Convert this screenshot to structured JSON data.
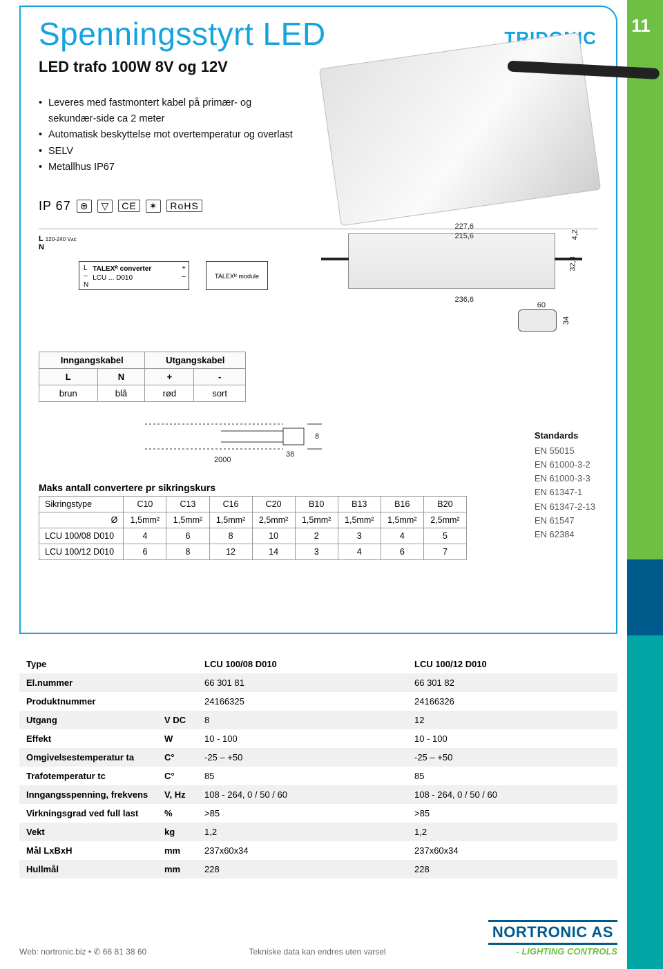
{
  "page_number": "11",
  "title": "Spenningsstyrt LED",
  "subtitle": "LED trafo 100W 8V og 12V",
  "brand": "TRIDONIC",
  "bullets": [
    "Leveres med fastmontert kabel på primær- og sekundær-side ca 2 meter",
    "Automatisk beskyttelse mot overtemperatur og overlast",
    "SELV",
    "Metallhus IP67"
  ],
  "ip_rating": "IP 67",
  "certs": [
    "⊜",
    "▽",
    "CE",
    "✶",
    "RoHS"
  ],
  "wiring": {
    "mains_label": "120-240 Vᴀᴄ",
    "L": "L",
    "N": "N",
    "converter_L": "L",
    "converter_N": "N",
    "tilde": "~",
    "converter_line1": "TALEXᴿ converter",
    "converter_line2": "LCU ... D010",
    "plus": "+",
    "minus": "–",
    "led_module": "TALEXᴿ module"
  },
  "dimensions": {
    "w_outer": "227,6",
    "w_inner": "215,6",
    "total": "236,6",
    "side_h": "4,2",
    "side_h2": "32,8",
    "end_w": "60",
    "end_h": "34",
    "cable_len": "2000",
    "cable_tag1": "38",
    "cable_tag2": "8"
  },
  "cable_table": {
    "head_in": "Inngangskabel",
    "head_out": "Utgangskabel",
    "cols": [
      "L",
      "N",
      "+",
      "-"
    ],
    "row": [
      "brun",
      "blå",
      "rød",
      "sort"
    ]
  },
  "fuse_heading": "Maks antall convertere pr sikringskurs",
  "fuse_table": {
    "row_labels": [
      "Sikringstype",
      "Ø",
      "LCU 100/08 D010",
      "LCU 100/12 D010"
    ],
    "types": [
      "C10",
      "C13",
      "C16",
      "C20",
      "B10",
      "B13",
      "B16",
      "B20"
    ],
    "diam": [
      "1,5mm²",
      "1,5mm²",
      "1,5mm²",
      "2,5mm²",
      "1,5mm²",
      "1,5mm²",
      "1,5mm²",
      "2,5mm²"
    ],
    "r1": [
      "4",
      "6",
      "8",
      "10",
      "2",
      "3",
      "4",
      "5"
    ],
    "r2": [
      "6",
      "8",
      "12",
      "14",
      "3",
      "4",
      "6",
      "7"
    ]
  },
  "standards": {
    "heading": "Standards",
    "items": [
      "EN 55015",
      "EN 61000-3-2",
      "EN 61000-3-3",
      "EN 61347-1",
      "EN 61347-2-13",
      "EN 61547",
      "EN 62384"
    ]
  },
  "spec": {
    "type_label": "Type",
    "cols": [
      "LCU 100/08 D010",
      "LCU 100/12 D010"
    ],
    "rows": [
      {
        "label": "El.nummer",
        "unit": "",
        "v": [
          "66 301 81",
          "66 301 82"
        ]
      },
      {
        "label": "Produktnummer",
        "unit": "",
        "v": [
          "24166325",
          "24166326"
        ]
      },
      {
        "label": "Utgang",
        "unit": "V DC",
        "v": [
          "8",
          "12"
        ]
      },
      {
        "label": "Effekt",
        "unit": "W",
        "v": [
          "10 - 100",
          "10 - 100"
        ]
      },
      {
        "label": "Omgivelsestemperatur ta",
        "unit": "C°",
        "v": [
          "-25 – +50",
          "-25 – +50"
        ]
      },
      {
        "label": "Trafotemperatur tc",
        "unit": "C°",
        "v": [
          "85",
          "85"
        ]
      },
      {
        "label": "Inngangsspenning, frekvens",
        "unit": "V, Hz",
        "v": [
          "108 - 264, 0 / 50 / 60",
          "108 - 264, 0 / 50 / 60"
        ]
      },
      {
        "label": "Virkningsgrad ved full last",
        "unit": "%",
        "v": [
          ">85",
          ">85"
        ]
      },
      {
        "label": "Vekt",
        "unit": "kg",
        "v": [
          "1,2",
          "1,2"
        ]
      },
      {
        "label": "Mål  LxBxH",
        "unit": "mm",
        "v": [
          "237x60x34",
          "237x60x34"
        ]
      },
      {
        "label": "Hullmål",
        "unit": "mm",
        "v": [
          "228",
          "228"
        ]
      }
    ]
  },
  "footer": {
    "left_1": "Web: nortronic.biz",
    "left_sep": "  •  ✆ ",
    "left_2": "66 81 38 60",
    "center": "Tekniske data kan endres uten varsel",
    "logo_name": "NORTRONIC AS",
    "logo_tag": "- LIGHTING CONTROLS"
  },
  "colors": {
    "accent": "#15a3dd",
    "green": "#6fbf44",
    "blue": "#005a8c",
    "teal": "#00a6a6"
  }
}
